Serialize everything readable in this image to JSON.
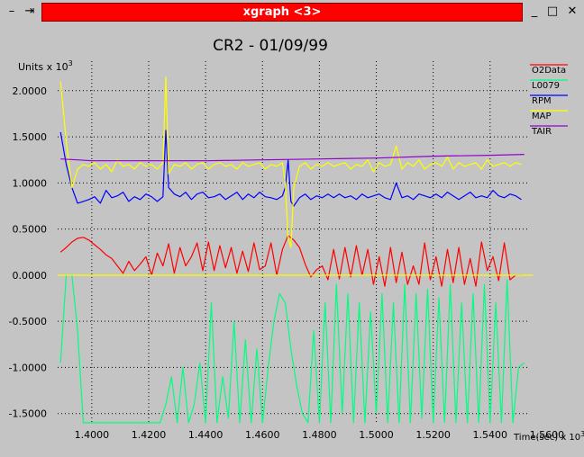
{
  "window": {
    "title": "xgraph <3>"
  },
  "chart_data": {
    "type": "line",
    "title": "CR2 - 01/09/99",
    "ylabel_base": "Units x 10",
    "ylabel_exp": "3",
    "xlabel_base": "Time(sec) x 10",
    "xlabel_exp": "3",
    "xlim": [
      1.388,
      1.554
    ],
    "ylim": [
      -1.62,
      2.32
    ],
    "grid": true,
    "legend_placement": "right",
    "x_ticks": [
      1.4,
      1.42,
      1.44,
      1.46,
      1.48,
      1.5,
      1.52,
      1.54,
      1.56
    ],
    "x_tick_labels": [
      "1.4000",
      "1.4200",
      "1.4400",
      "1.4600",
      "1.4800",
      "1.5000",
      "1.5200",
      "1.5400",
      "1.5600"
    ],
    "y_ticks": [
      -1.5,
      -1.0,
      -0.5,
      0.0,
      0.5,
      1.0,
      1.5,
      2.0
    ],
    "y_tick_labels": [
      "-1.5000",
      "-1.0000",
      "-0.5000",
      "0.0000",
      "0.5000",
      "1.0000",
      "1.5000",
      "2.0000"
    ],
    "series": [
      {
        "name": "O2Data",
        "color": "#ff0000",
        "x": [
          1.389,
          1.391,
          1.393,
          1.395,
          1.397,
          1.399,
          1.401,
          1.403,
          1.405,
          1.407,
          1.409,
          1.411,
          1.413,
          1.415,
          1.417,
          1.419,
          1.421,
          1.423,
          1.425,
          1.427,
          1.429,
          1.431,
          1.433,
          1.435,
          1.437,
          1.439,
          1.441,
          1.443,
          1.445,
          1.447,
          1.449,
          1.451,
          1.453,
          1.455,
          1.457,
          1.459,
          1.461,
          1.463,
          1.465,
          1.467,
          1.469,
          1.471,
          1.473,
          1.475,
          1.477,
          1.479,
          1.481,
          1.483,
          1.485,
          1.487,
          1.489,
          1.491,
          1.493,
          1.495,
          1.497,
          1.499,
          1.501,
          1.503,
          1.505,
          1.507,
          1.509,
          1.511,
          1.513,
          1.515,
          1.517,
          1.519,
          1.521,
          1.523,
          1.525,
          1.527,
          1.529,
          1.531,
          1.533,
          1.535,
          1.537,
          1.539,
          1.541,
          1.543,
          1.545,
          1.547,
          1.549,
          1.551
        ],
        "y": [
          0.25,
          0.3,
          0.36,
          0.4,
          0.41,
          0.38,
          0.33,
          0.28,
          0.22,
          0.18,
          0.1,
          0.02,
          0.15,
          0.05,
          0.12,
          0.2,
          0.0,
          0.24,
          0.1,
          0.34,
          0.02,
          0.3,
          0.1,
          0.2,
          0.35,
          0.05,
          0.36,
          0.05,
          0.32,
          0.08,
          0.3,
          0.02,
          0.26,
          0.04,
          0.35,
          0.06,
          0.1,
          0.35,
          0.0,
          0.28,
          0.43,
          0.38,
          0.3,
          0.12,
          -0.02,
          0.06,
          0.1,
          -0.05,
          0.28,
          -0.04,
          0.3,
          -0.02,
          0.32,
          0.0,
          0.28,
          -0.1,
          0.2,
          -0.12,
          0.3,
          -0.08,
          0.25,
          -0.1,
          0.1,
          -0.1,
          0.35,
          -0.05,
          0.2,
          -0.12,
          0.28,
          -0.08,
          0.3,
          -0.1,
          0.18,
          -0.12,
          0.36,
          0.05,
          0.2,
          -0.06,
          0.35,
          -0.05,
          0.0,
          0.0
        ]
      },
      {
        "name": "L0079",
        "color": "#00ff80",
        "x": [
          1.389,
          1.391,
          1.393,
          1.395,
          1.397,
          1.399,
          1.405,
          1.41,
          1.414,
          1.416,
          1.42,
          1.424,
          1.426,
          1.428,
          1.43,
          1.432,
          1.434,
          1.436,
          1.438,
          1.44,
          1.442,
          1.444,
          1.446,
          1.448,
          1.45,
          1.452,
          1.454,
          1.456,
          1.458,
          1.46,
          1.462,
          1.464,
          1.466,
          1.468,
          1.47,
          1.472,
          1.474,
          1.476,
          1.478,
          1.48,
          1.482,
          1.484,
          1.486,
          1.488,
          1.49,
          1.492,
          1.494,
          1.496,
          1.498,
          1.5,
          1.502,
          1.504,
          1.506,
          1.508,
          1.51,
          1.512,
          1.514,
          1.516,
          1.518,
          1.52,
          1.522,
          1.524,
          1.526,
          1.528,
          1.53,
          1.532,
          1.534,
          1.536,
          1.538,
          1.54,
          1.542,
          1.544,
          1.546,
          1.548,
          1.55,
          1.552
        ],
        "y": [
          -0.95,
          0.0,
          0.0,
          -0.6,
          -1.6,
          -1.6,
          -1.6,
          -1.6,
          -1.6,
          -1.6,
          -1.6,
          -1.6,
          -1.4,
          -1.1,
          -1.6,
          -1.0,
          -1.6,
          -1.4,
          -0.95,
          -1.6,
          -0.3,
          -1.6,
          -1.1,
          -1.55,
          -0.5,
          -1.6,
          -0.7,
          -1.6,
          -0.8,
          -1.6,
          -1.0,
          -0.5,
          -0.2,
          -0.3,
          -0.8,
          -1.2,
          -1.5,
          -1.6,
          -0.6,
          -1.6,
          -0.3,
          -1.6,
          -0.1,
          -1.5,
          -0.2,
          -1.6,
          -0.3,
          -1.6,
          -0.4,
          -1.5,
          -0.2,
          -1.6,
          -0.3,
          -1.6,
          -0.1,
          -1.6,
          -0.2,
          -1.55,
          -0.15,
          -1.6,
          -0.25,
          -1.6,
          -0.1,
          -1.6,
          -0.3,
          -1.6,
          -0.2,
          -1.6,
          -0.1,
          -1.6,
          -0.3,
          -1.6,
          -0.05,
          -1.6,
          -1.0,
          -0.95
        ]
      },
      {
        "name": "RPM",
        "color": "#0000ff",
        "x": [
          1.389,
          1.391,
          1.393,
          1.395,
          1.397,
          1.399,
          1.401,
          1.403,
          1.405,
          1.407,
          1.409,
          1.411,
          1.413,
          1.415,
          1.417,
          1.419,
          1.421,
          1.423,
          1.425,
          1.426,
          1.427,
          1.429,
          1.431,
          1.433,
          1.435,
          1.437,
          1.439,
          1.441,
          1.443,
          1.445,
          1.447,
          1.449,
          1.451,
          1.453,
          1.455,
          1.457,
          1.459,
          1.461,
          1.463,
          1.465,
          1.467,
          1.468,
          1.469,
          1.47,
          1.471,
          1.473,
          1.475,
          1.477,
          1.479,
          1.481,
          1.483,
          1.485,
          1.487,
          1.489,
          1.491,
          1.493,
          1.495,
          1.497,
          1.499,
          1.501,
          1.503,
          1.505,
          1.507,
          1.509,
          1.511,
          1.513,
          1.515,
          1.517,
          1.519,
          1.521,
          1.523,
          1.525,
          1.527,
          1.529,
          1.531,
          1.533,
          1.535,
          1.537,
          1.539,
          1.541,
          1.543,
          1.545,
          1.547,
          1.549,
          1.551
        ],
        "y": [
          1.55,
          1.2,
          0.95,
          0.78,
          0.8,
          0.82,
          0.85,
          0.78,
          0.92,
          0.84,
          0.86,
          0.9,
          0.8,
          0.85,
          0.82,
          0.88,
          0.85,
          0.8,
          0.85,
          1.57,
          0.95,
          0.88,
          0.85,
          0.9,
          0.82,
          0.88,
          0.9,
          0.84,
          0.85,
          0.88,
          0.82,
          0.86,
          0.9,
          0.82,
          0.88,
          0.84,
          0.9,
          0.85,
          0.84,
          0.82,
          0.86,
          0.95,
          1.25,
          0.8,
          0.75,
          0.84,
          0.88,
          0.82,
          0.86,
          0.84,
          0.88,
          0.84,
          0.88,
          0.84,
          0.86,
          0.82,
          0.88,
          0.84,
          0.86,
          0.88,
          0.84,
          0.82,
          1.0,
          0.84,
          0.86,
          0.82,
          0.88,
          0.86,
          0.84,
          0.88,
          0.84,
          0.9,
          0.86,
          0.82,
          0.86,
          0.9,
          0.84,
          0.86,
          0.84,
          0.92,
          0.86,
          0.84,
          0.88,
          0.86,
          0.82
        ]
      },
      {
        "name": "MAP",
        "color": "#ffff00",
        "x": [
          1.389,
          1.391,
          1.393,
          1.395,
          1.397,
          1.399,
          1.401,
          1.403,
          1.405,
          1.407,
          1.409,
          1.411,
          1.413,
          1.415,
          1.417,
          1.419,
          1.421,
          1.423,
          1.425,
          1.426,
          1.427,
          1.429,
          1.431,
          1.433,
          1.435,
          1.437,
          1.439,
          1.441,
          1.443,
          1.445,
          1.447,
          1.449,
          1.451,
          1.453,
          1.455,
          1.457,
          1.459,
          1.461,
          1.463,
          1.465,
          1.467,
          1.468,
          1.469,
          1.47,
          1.471,
          1.473,
          1.475,
          1.477,
          1.479,
          1.481,
          1.483,
          1.485,
          1.487,
          1.489,
          1.491,
          1.493,
          1.495,
          1.497,
          1.499,
          1.501,
          1.503,
          1.505,
          1.507,
          1.509,
          1.511,
          1.513,
          1.515,
          1.517,
          1.519,
          1.521,
          1.523,
          1.525,
          1.527,
          1.529,
          1.531,
          1.533,
          1.535,
          1.537,
          1.539,
          1.541,
          1.543,
          1.545,
          1.547,
          1.549,
          1.551
        ],
        "y": [
          2.1,
          1.45,
          0.95,
          1.15,
          1.2,
          1.18,
          1.22,
          1.15,
          1.2,
          1.12,
          1.25,
          1.18,
          1.2,
          1.15,
          1.22,
          1.18,
          1.2,
          1.15,
          1.22,
          2.15,
          1.1,
          1.2,
          1.18,
          1.22,
          1.15,
          1.2,
          1.22,
          1.15,
          1.2,
          1.22,
          1.18,
          1.2,
          1.15,
          1.22,
          1.18,
          1.2,
          1.22,
          1.15,
          1.2,
          1.18,
          1.22,
          1.0,
          0.4,
          0.3,
          0.95,
          1.18,
          1.22,
          1.15,
          1.2,
          1.18,
          1.22,
          1.18,
          1.2,
          1.22,
          1.15,
          1.2,
          1.18,
          1.25,
          1.12,
          1.22,
          1.18,
          1.2,
          1.4,
          1.15,
          1.22,
          1.18,
          1.25,
          1.15,
          1.2,
          1.22,
          1.18,
          1.28,
          1.15,
          1.22,
          1.18,
          1.2,
          1.22,
          1.15,
          1.25,
          1.18,
          1.2,
          1.22,
          1.18,
          1.22,
          1.2
        ]
      },
      {
        "name": "TAIR",
        "color": "#9000d0",
        "x": [
          1.389,
          1.395,
          1.4,
          1.42,
          1.44,
          1.46,
          1.48,
          1.5,
          1.52,
          1.54,
          1.552
        ],
        "y": [
          1.26,
          1.25,
          1.24,
          1.24,
          1.24,
          1.25,
          1.26,
          1.27,
          1.29,
          1.3,
          1.31
        ]
      },
      {
        "name": "",
        "color": "#ffff00",
        "x": [
          1.388,
          1.555
        ],
        "y": [
          0.0,
          0.0
        ]
      }
    ]
  }
}
